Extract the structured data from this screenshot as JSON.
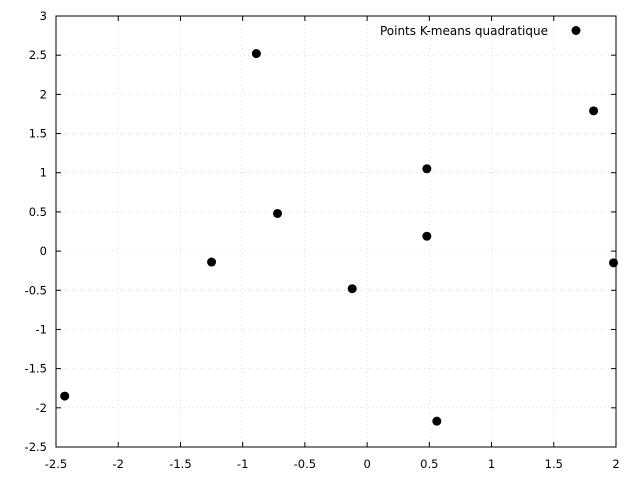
{
  "chart_data": {
    "type": "scatter",
    "title": "",
    "xlabel": "",
    "ylabel": "",
    "xlim": [
      -2.5,
      2
    ],
    "ylim": [
      -2.5,
      3
    ],
    "grid": true,
    "legend_position": "top-right",
    "x_ticks": [
      "-2.5",
      "-2",
      "-1.5",
      "-1",
      "-0.5",
      "0",
      "0.5",
      "1",
      "1.5",
      "2"
    ],
    "y_ticks": [
      "3",
      "2.5",
      "2",
      "1.5",
      "1",
      "0.5",
      "0",
      "-0.5",
      "-1",
      "-1.5",
      "-2",
      "-2.5"
    ],
    "series": [
      {
        "name": "Points K-means quadratique",
        "color": "#000000",
        "marker": "circle",
        "points": [
          {
            "x": -0.89,
            "y": 2.52
          },
          {
            "x": 1.82,
            "y": 1.79
          },
          {
            "x": 0.48,
            "y": 1.05
          },
          {
            "x": -0.72,
            "y": 0.48
          },
          {
            "x": 0.48,
            "y": 0.19
          },
          {
            "x": -1.25,
            "y": -0.14
          },
          {
            "x": 1.98,
            "y": -0.15
          },
          {
            "x": -0.12,
            "y": -0.48
          },
          {
            "x": -2.43,
            "y": -1.85
          },
          {
            "x": 0.56,
            "y": -2.17
          }
        ]
      }
    ]
  }
}
